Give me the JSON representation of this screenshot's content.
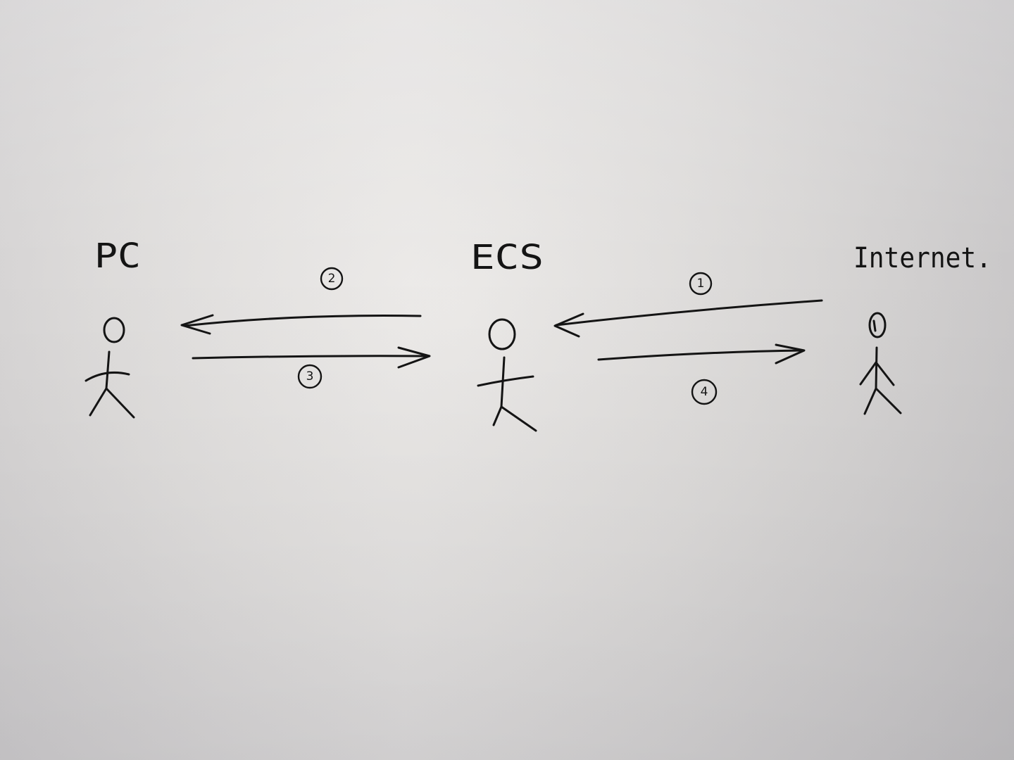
{
  "diagram": {
    "nodes": [
      {
        "id": "pc",
        "label": "PC"
      },
      {
        "id": "ecs",
        "label": "ECS"
      },
      {
        "id": "internet",
        "label": "Internet."
      }
    ],
    "edges": [
      {
        "step": "1",
        "from": "internet",
        "to": "ecs"
      },
      {
        "step": "2",
        "from": "ecs",
        "to": "pc"
      },
      {
        "step": "3",
        "from": "pc",
        "to": "ecs"
      },
      {
        "step": "4",
        "from": "ecs",
        "to": "internet"
      }
    ],
    "ink_color": "#141414"
  }
}
